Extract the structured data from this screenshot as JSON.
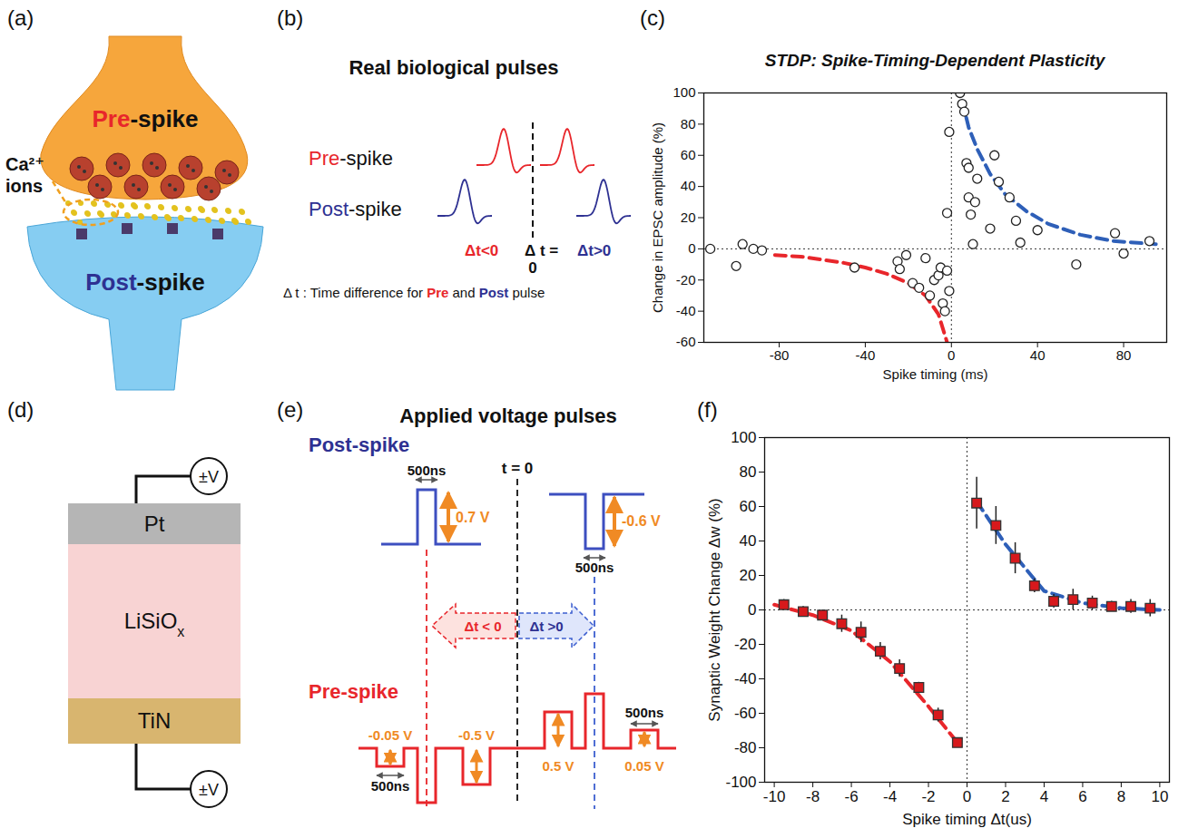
{
  "figure": {
    "panels": [
      "(a)",
      "(b)",
      "(c)",
      "(d)",
      "(e)",
      "(f)"
    ],
    "a": {
      "pre_label": [
        {
          "text": "Pre",
          "color": "#e8262b"
        },
        {
          "text": "-spike",
          "color": "#111111"
        }
      ],
      "ion_label": [
        "Ca²⁺",
        "ions"
      ],
      "post_label": [
        {
          "text": "Post",
          "color": "#2e3192"
        },
        {
          "text": "-spike",
          "color": "#111111"
        }
      ]
    },
    "b": {
      "title": "Real biological pulses",
      "pre_label": [
        {
          "text": "Pre",
          "color": "#e8262b"
        },
        {
          "text": "-spike",
          "color": "#111111"
        }
      ],
      "post_label": [
        {
          "text": "Post",
          "color": "#2e3192"
        },
        {
          "text": "-spike",
          "color": "#111111"
        }
      ],
      "dt_neg": "Δt<0",
      "dt_zero": [
        "Δ t =",
        "0"
      ],
      "dt_pos": "Δt>0",
      "caption": [
        {
          "text": "Δ t : Time difference for "
        },
        {
          "text": "Pre",
          "color": "#e8262b"
        },
        {
          "text": " and "
        },
        {
          "text": "Post",
          "color": "#2e3192"
        },
        {
          "text": " pulse"
        }
      ]
    },
    "d": {
      "top_terminal": "±V",
      "bottom_terminal": "±V",
      "layers": [
        {
          "name": "Pt",
          "sub": "",
          "color": "#b5b5b5"
        },
        {
          "name": "LiSiO",
          "sub": "x",
          "color": "#f8d3d3"
        },
        {
          "name": "TiN",
          "sub": "",
          "color": "#d8b56f"
        }
      ]
    },
    "e": {
      "title": "Applied voltage pulses",
      "post_label": [
        {
          "text": "Post-spike",
          "color": "#2e3192"
        }
      ],
      "pre_label": [
        {
          "text": "Pre-spike",
          "color": "#e8262b"
        }
      ],
      "t0": "t = 0",
      "dt_neg": "Δt < 0",
      "dt_pos": "Δt >0",
      "post_amplitudes": [
        "0.7 V",
        "-0.6 V"
      ],
      "pre_amplitudes": [
        "-0.05 V",
        "-0.5 V",
        "0.5 V",
        "0.05 V"
      ],
      "widths": [
        "500ns",
        "500ns",
        "500ns",
        "500ns"
      ]
    }
  },
  "chart_data": [
    {
      "type": "scatter",
      "title": "STDP: Spike-Timing-Dependent Plasticity",
      "x_label": "Spike timing (ms)",
      "y_label": "Change in EPSC amplitude (%)",
      "x": [
        -112,
        -100,
        -97,
        -92,
        -88,
        -45,
        -25,
        -24,
        -21,
        -18,
        -15,
        -12,
        -10,
        -8,
        -6,
        -5,
        -4,
        -3,
        -2,
        -1,
        -2,
        -1,
        4,
        5,
        6,
        7,
        8,
        8,
        9,
        10,
        11,
        12,
        18,
        20,
        22,
        27,
        30,
        32,
        40,
        58,
        76,
        80,
        92
      ],
      "values": [
        0,
        -11,
        3,
        0,
        -1,
        -12,
        -8,
        -13,
        -4,
        -22,
        -25,
        -6,
        -30,
        -20,
        -17,
        -12,
        -35,
        -40,
        -14,
        -27,
        23,
        75,
        100,
        93,
        88,
        55,
        52,
        33,
        22,
        3,
        30,
        45,
        13,
        60,
        43,
        33,
        18,
        4,
        12,
        -10,
        10,
        -3,
        5
      ],
      "color": "#222222",
      "marker": "open circle",
      "xlim": [
        -115,
        100
      ],
      "xticks": [
        -80,
        -40,
        0,
        40,
        80
      ],
      "ylim": [
        -60,
        100
      ],
      "yticks": [
        -60,
        -40,
        -20,
        0,
        20,
        40,
        60,
        80,
        100
      ],
      "grid": false,
      "fit_lines": [
        {
          "x": [
            -82,
            -70,
            -60,
            -50,
            -40,
            -30,
            -20,
            -12,
            -6,
            -2
          ],
          "values": [
            -4,
            -5,
            -7,
            -9,
            -12,
            -16,
            -22,
            -30,
            -42,
            -60
          ],
          "color": "#e8262b",
          "line_style": "dashed"
        },
        {
          "x": [
            5,
            8,
            12,
            18,
            25,
            35,
            45,
            60,
            75,
            95
          ],
          "values": [
            95,
            78,
            64,
            48,
            35,
            24,
            16,
            9,
            5,
            3
          ],
          "color": "#2e5fb8",
          "line_style": "dashed"
        }
      ]
    },
    {
      "type": "scatter",
      "x_label": "Spike timing Δt(us)",
      "y_label": "Synaptic Weight Change Δw (%)",
      "x": [
        -9.5,
        -8.5,
        -7.5,
        -6.5,
        -5.5,
        -4.5,
        -3.5,
        -2.5,
        -1.5,
        -0.5,
        0.5,
        1.5,
        2.5,
        3.5,
        4.5,
        5.5,
        6.5,
        7.5,
        8.5,
        9.5
      ],
      "values": [
        3,
        -1,
        -3,
        -8,
        -13,
        -24,
        -34,
        -45,
        -61,
        -77,
        62,
        49,
        30,
        14,
        5,
        6,
        4,
        2,
        2,
        1
      ],
      "errors": [
        3,
        3,
        3,
        5,
        6,
        5,
        5,
        3,
        4,
        2,
        15,
        11,
        9,
        4,
        4,
        6,
        4,
        3,
        4,
        5
      ],
      "color": "#d7191c",
      "marker": "square",
      "xlim": [
        -10.5,
        10.5
      ],
      "xticks": [
        -10,
        -8,
        -6,
        -4,
        -2,
        0,
        2,
        4,
        6,
        8,
        10
      ],
      "ylim": [
        -100,
        100
      ],
      "yticks": [
        -100,
        -80,
        -60,
        -40,
        -20,
        0,
        20,
        40,
        60,
        80,
        100
      ],
      "grid": false,
      "fit_lines": [
        {
          "x": [
            -10,
            -8,
            -6,
            -4,
            -2,
            -0.5
          ],
          "values": [
            3,
            -3,
            -12,
            -30,
            -56,
            -77
          ],
          "color": "#e8262b",
          "line_style": "dashed"
        },
        {
          "x": [
            0.5,
            2,
            4,
            6,
            8,
            10
          ],
          "values": [
            63,
            38,
            11,
            4,
            1,
            0
          ],
          "color": "#2e5fb8",
          "line_style": "dashed"
        }
      ]
    }
  ]
}
